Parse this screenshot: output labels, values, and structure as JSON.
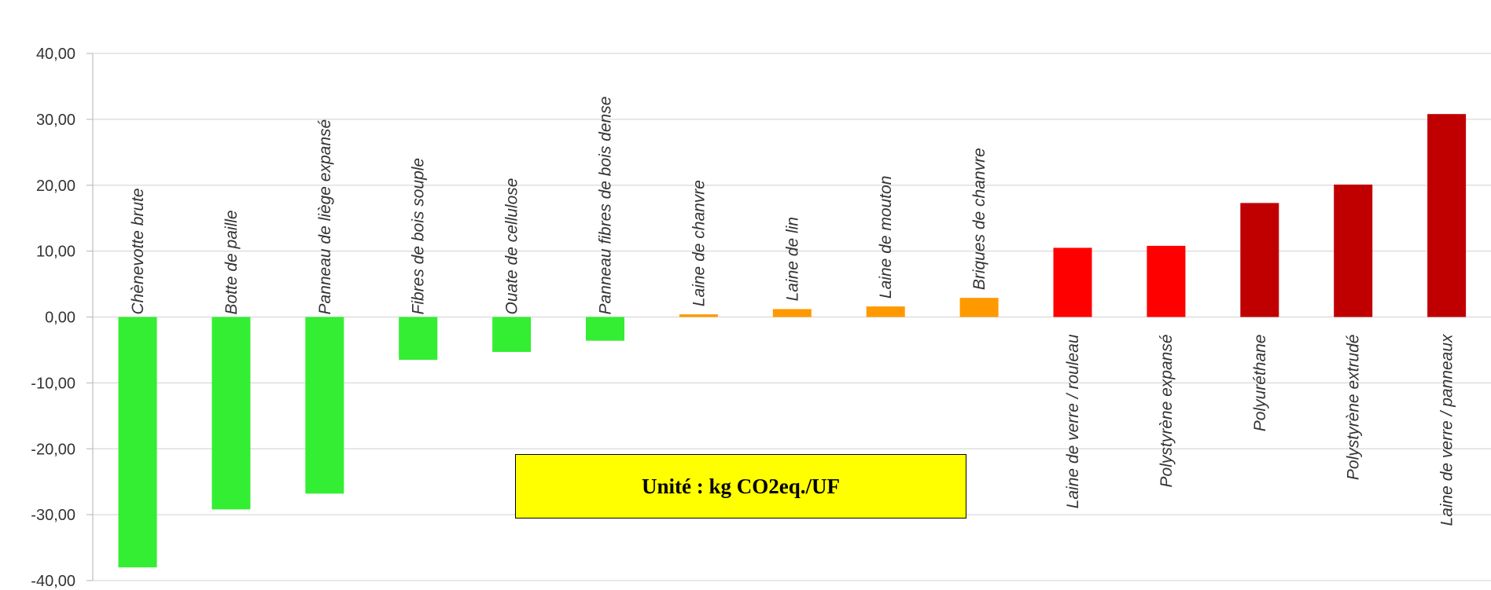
{
  "unit_label": "Unité : kg CO2eq./UF",
  "chart_data": {
    "type": "bar",
    "title": "",
    "xlabel": "",
    "ylabel": "",
    "ylim": [
      -40,
      40
    ],
    "yticks": [
      40,
      30,
      20,
      10,
      0,
      -10,
      -20,
      -30,
      -40
    ],
    "ytick_labels": [
      "40,00",
      "30,00",
      "20,00",
      "10,00",
      "0,00",
      "-10,00",
      "-20,00",
      "-30,00",
      "-40,00"
    ],
    "grid": true,
    "legend": "none",
    "categories": [
      "Chènevotte brute",
      "Botte de paille",
      "Panneau de liège expansé",
      "Fibres de bois souple",
      "Ouate de cellulose",
      "Panneau fibres de bois dense",
      "Laine de chanvre",
      "Laine de lin",
      "Laine de mouton",
      "Briques de chanvre",
      "Laine de verre / rouleau",
      "Polystyrène expansé",
      "Polyuréthane",
      "Polystyrène extrudé",
      "Laine de verre / panneaux"
    ],
    "values": [
      -38,
      -29.2,
      -26.8,
      -6.5,
      -5.3,
      -3.6,
      0.4,
      1.2,
      1.6,
      2.9,
      10.5,
      10.8,
      17.3,
      20.1,
      30.8
    ],
    "colors": [
      "#33ee33",
      "#33ee33",
      "#33ee33",
      "#33ee33",
      "#33ee33",
      "#33ee33",
      "#ff9900",
      "#ff9900",
      "#ff9900",
      "#ff9900",
      "#ff0000",
      "#ff0000",
      "#c00000",
      "#c00000",
      "#c00000"
    ]
  }
}
